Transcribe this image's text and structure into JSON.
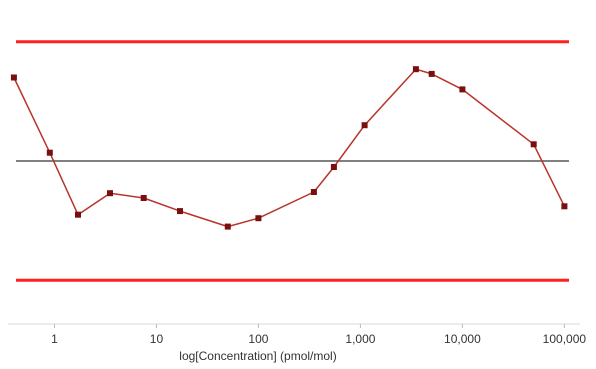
{
  "chart_data": {
    "type": "line",
    "x_scale": "log",
    "xlabel": "log[Concentration] (pmol/mol)",
    "ylabel": "",
    "title": "",
    "xlim": [
      0.35,
      130000
    ],
    "ylim": [
      -1.35,
      1.35
    ],
    "x_ticks": [
      {
        "value": 1,
        "label": "1"
      },
      {
        "value": 10,
        "label": "10"
      },
      {
        "value": 100,
        "label": "100"
      },
      {
        "value": 1000,
        "label": "1,000"
      },
      {
        "value": 10000,
        "label": "10,000"
      },
      {
        "value": 100000,
        "label": "100,000"
      }
    ],
    "reference_lines": [
      {
        "y": 1.0,
        "color": "#ff2020"
      },
      {
        "y": 0.0,
        "color": "#808080"
      },
      {
        "y": -1.0,
        "color": "#ff2020"
      }
    ],
    "series": [
      {
        "color": "#b8342a",
        "marker_color": "#7a0f0f",
        "points": [
          {
            "x": 0.4,
            "y": 0.7
          },
          {
            "x": 0.9,
            "y": 0.07
          },
          {
            "x": 1.7,
            "y": -0.45
          },
          {
            "x": 3.5,
            "y": -0.27
          },
          {
            "x": 7.5,
            "y": -0.31
          },
          {
            "x": 17,
            "y": -0.42
          },
          {
            "x": 50,
            "y": -0.55
          },
          {
            "x": 100,
            "y": -0.48
          },
          {
            "x": 350,
            "y": -0.26
          },
          {
            "x": 550,
            "y": -0.05
          },
          {
            "x": 1100,
            "y": 0.3
          },
          {
            "x": 3500,
            "y": 0.77
          },
          {
            "x": 5000,
            "y": 0.73
          },
          {
            "x": 10000,
            "y": 0.6
          },
          {
            "x": 50000,
            "y": 0.14
          },
          {
            "x": 100000,
            "y": -0.38
          }
        ]
      }
    ]
  }
}
